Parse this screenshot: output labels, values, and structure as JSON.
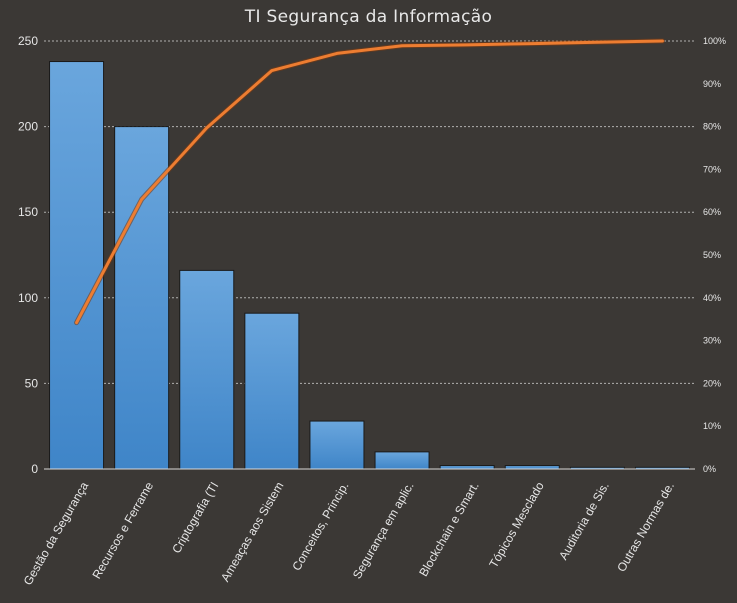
{
  "chart_data": {
    "type": "bar",
    "title": "TI Segurança da Informação",
    "xlabel": "",
    "ylabel": "",
    "categories": [
      "Gestão da Segurança",
      "Recursos e Ferrame",
      "Criptografia (TI",
      "Ameaças aos Sistem",
      "Conceitos, Princip.",
      "Segurança em aplic.",
      "Blockchain e Smart.",
      "Tópicos Mesclado",
      "Auditoria de Sis.",
      "Outras Normas de."
    ],
    "series": [
      {
        "type": "bar",
        "axis": "left",
        "values": [
          238,
          200,
          116,
          91,
          28,
          10,
          2,
          2,
          1,
          1
        ]
      },
      {
        "type": "line",
        "axis": "right",
        "values": [
          34.2,
          63.0,
          79.7,
          93.1,
          97.1,
          98.9,
          99.1,
          99.4,
          99.7,
          100
        ]
      }
    ],
    "ylim": [
      0,
      250
    ],
    "yticks": [
      "0",
      "50",
      "100",
      "150",
      "200",
      "250"
    ],
    "y2lim": [
      0,
      100
    ],
    "y2ticks": [
      "0%",
      "10%",
      "20%",
      "30%",
      "40%",
      "50%",
      "60%",
      "70%",
      "80%",
      "90%",
      "100%"
    ],
    "grid": true,
    "legend": "none"
  },
  "colors": {
    "background": "#3b3835",
    "bar_top": "#6aa6dd",
    "bar_bottom": "#3f85c8",
    "bar_stroke": "#1a1a1a",
    "line": "#ed7d31",
    "grid": "#d8d8d8",
    "text": "#e6e6e6"
  }
}
